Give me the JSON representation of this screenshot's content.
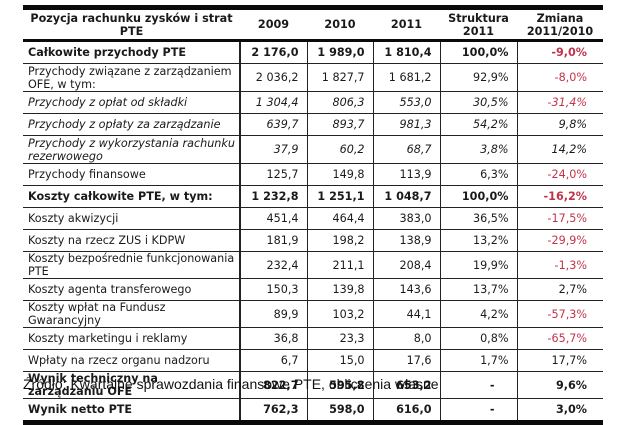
{
  "table": {
    "headers": {
      "item": "Pozycja rachunku zysków i strat PTE",
      "y2009": "2009",
      "y2010": "2010",
      "y2011": "2011",
      "structure": "Struktura 2011",
      "change": "Zmiana 2011/2010"
    },
    "rows": [
      {
        "label": "Całkowite przychody PTE",
        "v2009": "2 176,0",
        "v2010": "1 989,0",
        "v2011": "1 810,4",
        "structure": "100,0%",
        "change": "-9,0%",
        "style": "bold",
        "change_color": "#c0344b"
      },
      {
        "label": "Przychody związane z zarządzaniem OFE, w tym:",
        "v2009": "2 036,2",
        "v2010": "1 827,7",
        "v2011": "1 681,2",
        "structure": "92,9%",
        "change": "-8,0%",
        "style": "normal",
        "change_color": "#c0344b"
      },
      {
        "label": "Przychody z opłat od składki",
        "v2009": "1 304,4",
        "v2010": "806,3",
        "v2011": "553,0",
        "structure": "30,5%",
        "change": "-31,4%",
        "style": "italic",
        "change_color": "#c0344b"
      },
      {
        "label": "Przychody z opłaty za zarządzanie",
        "v2009": "639,7",
        "v2010": "893,7",
        "v2011": "981,3",
        "structure": "54,2%",
        "change": "9,8%",
        "style": "italic",
        "change_color": "#1a1a1a"
      },
      {
        "label": "Przychody z wykorzystania rachunku rezerwowego",
        "v2009": "37,9",
        "v2010": "60,2",
        "v2011": "68,7",
        "structure": "3,8%",
        "change": "14,2%",
        "style": "italic",
        "change_color": "#1a1a1a"
      },
      {
        "label": "Przychody finansowe",
        "v2009": "125,7",
        "v2010": "149,8",
        "v2011": "113,9",
        "structure": "6,3%",
        "change": "-24,0%",
        "style": "normal",
        "change_color": "#c0344b"
      },
      {
        "label": "Koszty całkowite PTE, w tym:",
        "v2009": "1 232,8",
        "v2010": "1 251,1",
        "v2011": "1 048,7",
        "structure": "100,0%",
        "change": "-16,2%",
        "style": "bold",
        "change_color": "#c0344b"
      },
      {
        "label": "Koszty akwizycji",
        "v2009": "451,4",
        "v2010": "464,4",
        "v2011": "383,0",
        "structure": "36,5%",
        "change": "-17,5%",
        "style": "normal",
        "change_color": "#c0344b"
      },
      {
        "label": "Koszty na rzecz ZUS i KDPW",
        "v2009": "181,9",
        "v2010": "198,2",
        "v2011": "138,9",
        "structure": "13,2%",
        "change": "-29,9%",
        "style": "normal",
        "change_color": "#c0344b"
      },
      {
        "label": "Koszty bezpośrednie funkcjonowania PTE",
        "v2009": "232,4",
        "v2010": "211,1",
        "v2011": "208,4",
        "structure": "19,9%",
        "change": "-1,3%",
        "style": "normal",
        "change_color": "#c0344b"
      },
      {
        "label": "Koszty agenta transferowego",
        "v2009": "150,3",
        "v2010": "139,8",
        "v2011": "143,6",
        "structure": "13,7%",
        "change": "2,7%",
        "style": "normal",
        "change_color": "#1a1a1a"
      },
      {
        "label": "Koszty wpłat na Fundusz Gwarancyjny",
        "v2009": "89,9",
        "v2010": "103,2",
        "v2011": "44,1",
        "structure": "4,2%",
        "change": "-57,3%",
        "style": "normal",
        "change_color": "#c0344b"
      },
      {
        "label": "Koszty marketingu i reklamy",
        "v2009": "36,8",
        "v2010": "23,3",
        "v2011": "8,0",
        "structure": "0,8%",
        "change": "-65,7%",
        "style": "normal",
        "change_color": "#c0344b"
      },
      {
        "label": "Wpłaty na rzecz organu nadzoru",
        "v2009": "6,7",
        "v2010": "15,0",
        "v2011": "17,6",
        "structure": "1,7%",
        "change": "17,7%",
        "style": "normal",
        "change_color": "#1a1a1a"
      },
      {
        "label": "Wynik techniczny na zarządzaniu OFE",
        "v2009": "822,7",
        "v2010": "595,8",
        "v2011": "653,2",
        "structure": "-",
        "change": "9,6%",
        "style": "bold",
        "change_color": "#1a1a1a"
      },
      {
        "label": "Wynik netto PTE",
        "v2009": "762,3",
        "v2010": "598,0",
        "v2011": "616,0",
        "structure": "-",
        "change": "3,0%",
        "style": "bold",
        "change_color": "#1a1a1a"
      }
    ]
  },
  "footer": {
    "source": "Źródło: Kwartalne sprawozdania finansowe PTE, obliczenia własne"
  },
  "colors": {
    "negative": "#c0344b",
    "text": "#1a1a1a",
    "rule": "#0a0a0a"
  }
}
